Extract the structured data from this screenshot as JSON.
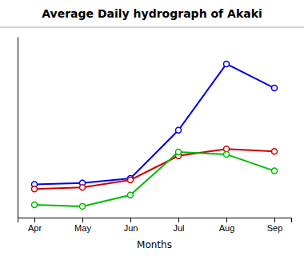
{
  "chart_data": {
    "type": "line",
    "title": "Average Daily hydrograph of Akaki",
    "x_label": "Months",
    "categories": [
      "Apr",
      "May",
      "Jun",
      "Jul",
      "Aug",
      "Sep"
    ],
    "series": [
      {
        "color": "#0000ee",
        "marker": "circle",
        "values": [
          2.2,
          2.3,
          2.6,
          5.8,
          10.2,
          8.6
        ]
      },
      {
        "color": "#cc0000",
        "marker": "circle",
        "values": [
          1.9,
          2.0,
          2.5,
          4.1,
          4.55,
          4.4
        ]
      },
      {
        "color": "#00bb00",
        "marker": "circle",
        "values": [
          0.85,
          0.75,
          1.5,
          4.35,
          4.2,
          3.1
        ]
      }
    ],
    "ylim": [
      0,
      12
    ],
    "tick_labels": "x",
    "grid": false
  }
}
